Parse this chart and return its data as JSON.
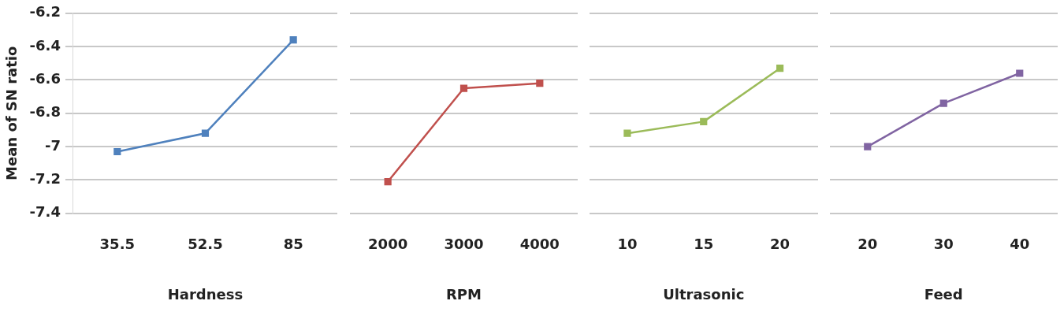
{
  "chart_data": [
    {
      "type": "line",
      "xlabel": "Hardness",
      "ylabel": "Mean of SN ratio",
      "categories": [
        "35.5",
        "52.5",
        "85"
      ],
      "values": [
        -7.03,
        -6.92,
        -6.36
      ],
      "color": "#4f81bd",
      "ylim": [
        -7.4,
        -6.2
      ],
      "yticks": [
        -7.4,
        -7.2,
        -7,
        -6.8,
        -6.6,
        -6.4,
        -6.2
      ],
      "grid": "y",
      "marker": "square"
    },
    {
      "type": "line",
      "xlabel": "RPM",
      "categories": [
        "2000",
        "3000",
        "4000"
      ],
      "values": [
        -7.21,
        -6.65,
        -6.62
      ],
      "color": "#c0504d",
      "ylim": [
        -7.4,
        -6.2
      ],
      "yticks": [
        -7.4,
        -7.2,
        -7,
        -6.8,
        -6.6,
        -6.4,
        -6.2
      ],
      "grid": "y",
      "marker": "square",
      "tick_labels": "x"
    },
    {
      "type": "line",
      "xlabel": "Ultrasonic",
      "categories": [
        "10",
        "15",
        "20"
      ],
      "values": [
        -6.92,
        -6.85,
        -6.53
      ],
      "color": "#9bbb59",
      "ylim": [
        -7.4,
        -6.2
      ],
      "yticks": [
        -7.4,
        -7.2,
        -7,
        -6.8,
        -6.6,
        -6.4,
        -6.2
      ],
      "grid": "y",
      "marker": "square",
      "tick_labels": "x"
    },
    {
      "type": "line",
      "xlabel": "Feed",
      "categories": [
        "20",
        "30",
        "40"
      ],
      "values": [
        -7.0,
        -6.74,
        -6.56
      ],
      "color": "#8064a2",
      "ylim": [
        -7.4,
        -6.2
      ],
      "yticks": [
        -7.4,
        -7.2,
        -7,
        -6.8,
        -6.6,
        -6.4,
        -6.2
      ],
      "grid": "y",
      "marker": "square",
      "tick_labels": "x"
    }
  ]
}
